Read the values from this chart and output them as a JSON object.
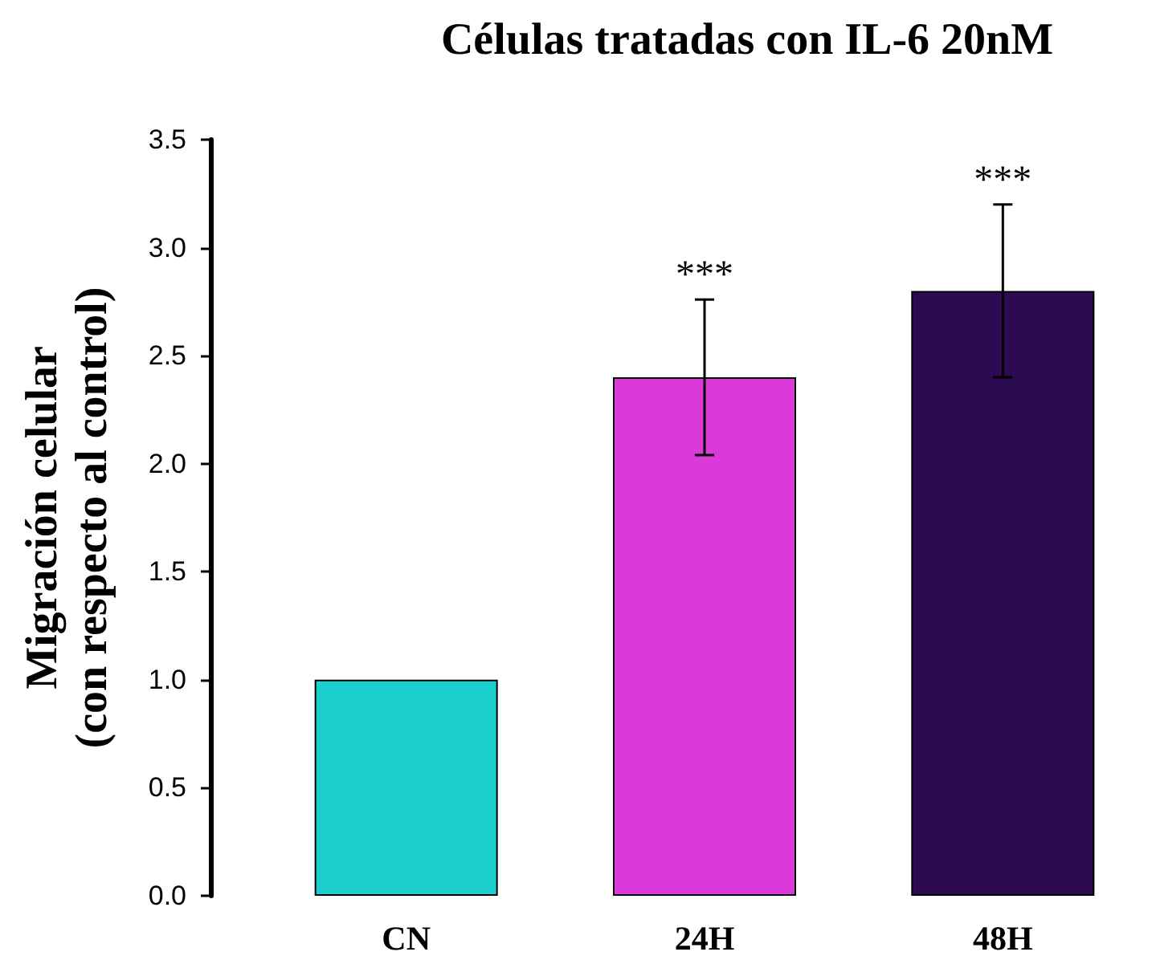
{
  "chart_data": {
    "type": "bar",
    "title": "Células tratadas con IL-6 20nM",
    "ylabel": "Migración celular\n(con respecto al control)",
    "categories": [
      "CN",
      "24H",
      "48H"
    ],
    "values": [
      1.0,
      2.4,
      2.8
    ],
    "colors": [
      "#1ccfcf",
      "#d93ad9",
      "#2c0b52"
    ],
    "errors": [
      null,
      0.36,
      0.4
    ],
    "ylim": [
      0,
      3.5
    ],
    "yticks": [
      {
        "value": 0,
        "label": "0.0"
      },
      0.5,
      {
        "value": 1,
        "label": "1.0"
      },
      1.5,
      {
        "value": 2,
        "label": "2.0"
      },
      2.5,
      {
        "value": 3,
        "label": "3.0"
      },
      3.5
    ],
    "grid": false,
    "annotations": [
      {
        "text": "***",
        "x": "24H",
        "y": 2.76
      },
      {
        "text": "***",
        "x": "48H",
        "y": 3.2
      }
    ]
  }
}
